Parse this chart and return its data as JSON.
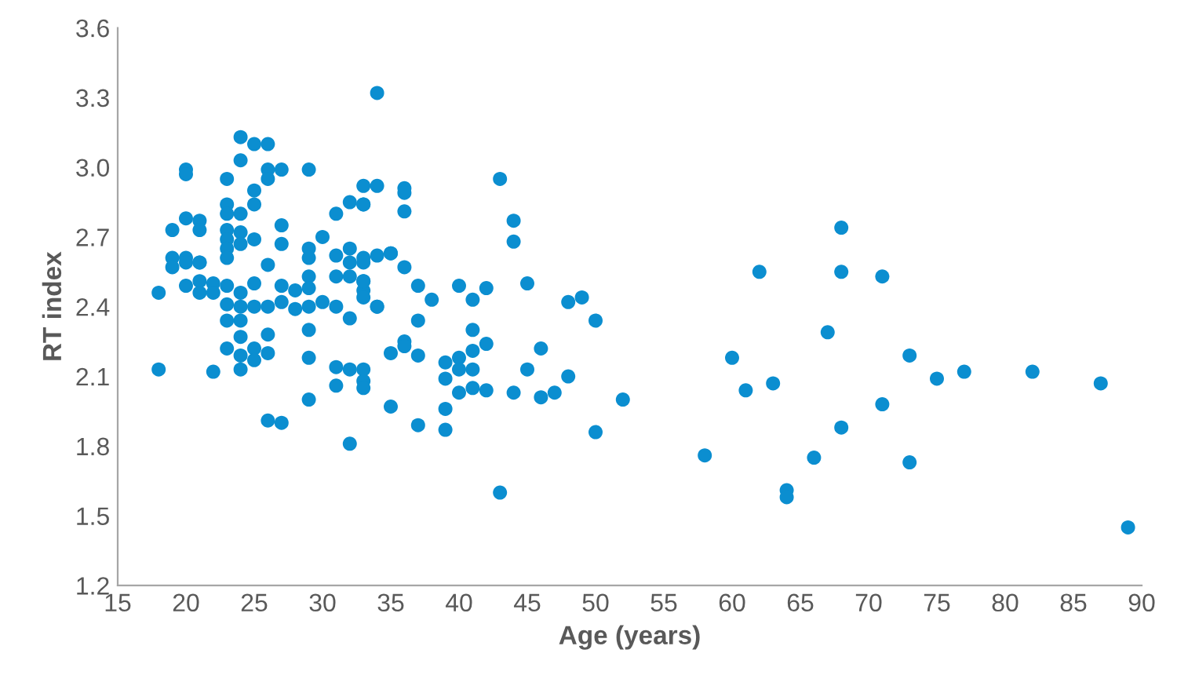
{
  "chart_data": {
    "type": "scatter",
    "xlabel": "Age (years)",
    "ylabel": "RT index",
    "xlim": [
      15,
      90
    ],
    "xticks": [
      15,
      20,
      25,
      30,
      35,
      40,
      45,
      50,
      55,
      60,
      65,
      70,
      75,
      80,
      85,
      90
    ],
    "ylim": [
      1.2,
      3.6
    ],
    "yticks": [
      {
        "value": 1.2,
        "label": "1.2"
      },
      {
        "value": 1.5,
        "label": "1.5"
      },
      {
        "value": 1.8,
        "label": "1.8"
      },
      {
        "value": 2.1,
        "label": "2.1"
      },
      {
        "value": 2.4,
        "label": "2.4"
      },
      {
        "value": 2.7,
        "label": "2.7"
      },
      {
        "value": 3.0,
        "label": "3.0"
      },
      {
        "value": 3.3,
        "label": "3.3"
      },
      {
        "value": 3.6,
        "label": "3.6"
      }
    ],
    "marker": "circle",
    "grid": false,
    "legend": false,
    "series": [
      {
        "color": "#0b8ed0",
        "x": [
          58,
          60,
          61,
          62,
          63,
          64,
          64,
          66,
          67,
          68,
          68,
          68,
          71,
          71,
          73,
          73,
          75,
          77,
          82,
          87,
          89,
          34,
          43,
          44,
          44,
          45,
          48,
          49,
          50,
          46,
          45,
          48,
          44,
          46,
          47,
          52,
          50,
          43,
          40,
          41,
          42,
          41,
          42,
          41,
          39,
          40,
          40,
          41,
          39,
          40,
          41,
          42,
          39,
          39,
          37,
          35,
          37,
          35,
          36,
          36,
          37,
          37,
          38,
          35,
          36,
          33,
          34,
          36,
          36,
          36,
          33,
          33,
          33,
          33,
          33,
          33,
          34,
          33,
          33,
          33,
          24,
          25,
          26,
          24,
          20,
          20,
          26,
          27,
          26,
          29,
          23,
          25,
          25,
          32,
          33,
          31,
          23,
          23,
          24,
          20,
          21,
          21,
          19,
          27,
          23,
          23,
          24,
          24,
          25,
          27,
          29,
          30,
          26,
          31,
          32,
          34,
          35,
          19,
          20,
          21,
          23,
          23,
          18,
          18,
          19,
          20,
          21,
          20,
          21,
          21,
          22,
          22,
          23,
          23,
          24,
          24,
          24,
          24,
          24,
          24,
          23,
          23,
          22,
          25,
          25,
          25,
          25,
          26,
          26,
          26,
          26,
          27,
          27,
          27,
          28,
          28,
          29,
          29,
          29,
          29,
          29,
          29,
          29,
          30,
          31,
          31,
          31,
          31,
          32,
          32,
          32,
          32,
          32,
          33,
          34
        ],
        "values": [
          1.76,
          2.18,
          2.04,
          2.55,
          2.07,
          1.61,
          1.58,
          1.75,
          2.29,
          2.74,
          2.55,
          1.88,
          2.53,
          1.98,
          2.19,
          1.73,
          2.09,
          2.12,
          2.12,
          2.07,
          1.45,
          3.32,
          2.95,
          2.77,
          2.68,
          2.5,
          2.42,
          2.44,
          2.34,
          2.22,
          2.13,
          2.1,
          2.03,
          2.01,
          2.03,
          2.0,
          1.86,
          1.6,
          2.49,
          2.43,
          2.48,
          2.3,
          2.24,
          2.21,
          2.16,
          2.18,
          2.13,
          2.13,
          2.09,
          2.03,
          2.05,
          2.04,
          1.96,
          1.87,
          1.89,
          1.97,
          2.34,
          2.2,
          2.25,
          2.23,
          2.19,
          2.49,
          2.43,
          2.63,
          2.57,
          2.92,
          2.92,
          2.91,
          2.89,
          2.81,
          2.84,
          2.61,
          2.59,
          2.51,
          2.47,
          2.44,
          2.4,
          2.13,
          2.08,
          2.05,
          3.13,
          3.1,
          3.1,
          3.03,
          2.99,
          2.97,
          2.99,
          2.99,
          2.95,
          2.99,
          2.95,
          2.9,
          2.84,
          2.85,
          2.84,
          2.8,
          2.84,
          2.8,
          2.8,
          2.78,
          2.77,
          2.73,
          2.73,
          2.75,
          2.73,
          2.69,
          2.72,
          2.67,
          2.69,
          2.67,
          2.65,
          2.7,
          2.58,
          2.62,
          2.65,
          2.62,
          2.63,
          2.61,
          2.61,
          2.59,
          2.65,
          2.61,
          2.46,
          2.13,
          2.57,
          2.59,
          2.59,
          2.49,
          2.51,
          2.46,
          2.5,
          2.46,
          2.49,
          2.41,
          2.46,
          2.4,
          2.34,
          2.27,
          2.19,
          2.13,
          2.34,
          2.22,
          2.12,
          2.5,
          2.4,
          2.22,
          2.17,
          2.4,
          2.28,
          2.2,
          1.91,
          2.49,
          2.42,
          1.9,
          2.47,
          2.39,
          2.61,
          2.53,
          2.48,
          2.4,
          2.3,
          2.18,
          2.0,
          2.42,
          2.53,
          2.4,
          2.14,
          2.06,
          2.59,
          2.53,
          2.35,
          2.13,
          1.81,
          2.51,
          2.4
        ]
      }
    ]
  }
}
